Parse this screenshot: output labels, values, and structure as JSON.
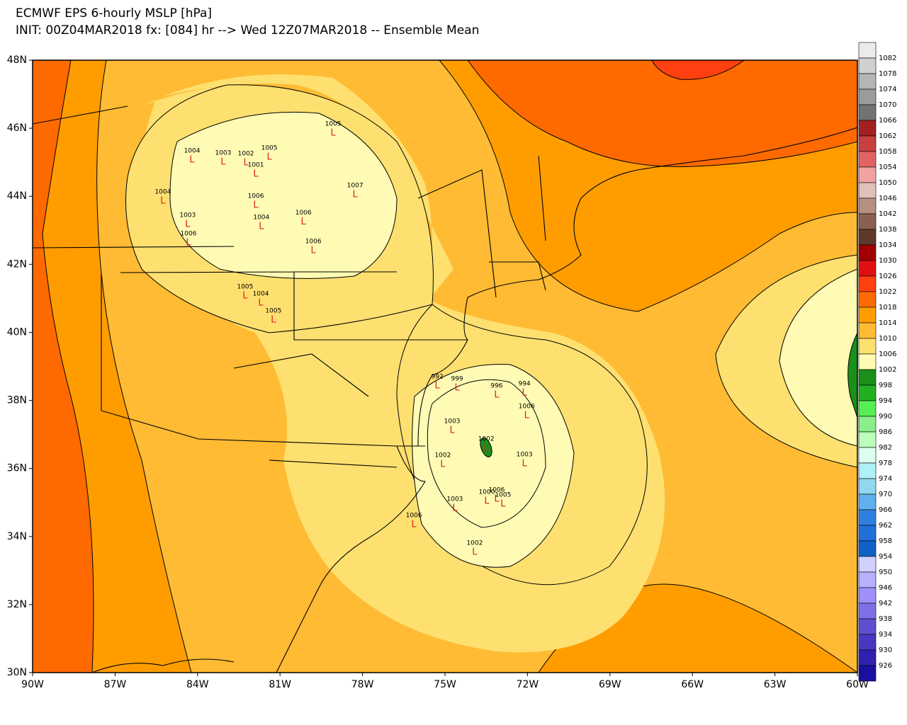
{
  "header": {
    "title": "ECMWF EPS 6-hourly MSLP [hPa]",
    "subtitle": "INIT: 00Z04MAR2018 fx: [084] hr --> Wed 12Z07MAR2018 -- Ensemble Mean"
  },
  "map": {
    "lat_ticks": [
      {
        "value": 48,
        "label": "48N"
      },
      {
        "value": 46,
        "label": "46N"
      },
      {
        "value": 44,
        "label": "44N"
      },
      {
        "value": 42,
        "label": "42N"
      },
      {
        "value": 40,
        "label": "40N"
      },
      {
        "value": 38,
        "label": "38N"
      },
      {
        "value": 36,
        "label": "36N"
      },
      {
        "value": 34,
        "label": "34N"
      },
      {
        "value": 32,
        "label": "32N"
      },
      {
        "value": 30,
        "label": "30N"
      }
    ],
    "lon_ticks": [
      {
        "value": -90,
        "label": "90W"
      },
      {
        "value": -87,
        "label": "87W"
      },
      {
        "value": -84,
        "label": "84W"
      },
      {
        "value": -81,
        "label": "81W"
      },
      {
        "value": -78,
        "label": "78W"
      },
      {
        "value": -75,
        "label": "75W"
      },
      {
        "value": -72,
        "label": "72W"
      },
      {
        "value": -69,
        "label": "69W"
      },
      {
        "value": -66,
        "label": "66W"
      },
      {
        "value": -63,
        "label": "63W"
      },
      {
        "value": -60,
        "label": "60W"
      }
    ],
    "low_symbol": "L",
    "lows": [
      {
        "label": "1005",
        "lat": 45.86,
        "lon": -79.07
      },
      {
        "label": "1004",
        "lat": 45.07,
        "lon": -84.2
      },
      {
        "label": "1003",
        "lat": 45.0,
        "lon": -83.07
      },
      {
        "label": "1002",
        "lat": 44.98,
        "lon": -82.24
      },
      {
        "label": "1005",
        "lat": 45.15,
        "lon": -81.39
      },
      {
        "label": "1001",
        "lat": 44.65,
        "lon": -81.88
      },
      {
        "label": "1004",
        "lat": 43.86,
        "lon": -85.26
      },
      {
        "label": "1007",
        "lat": 44.05,
        "lon": -78.27
      },
      {
        "label": "1003",
        "lat": 43.17,
        "lon": -84.36
      },
      {
        "label": "1006",
        "lat": 43.73,
        "lon": -81.88
      },
      {
        "label": "1006",
        "lat": 43.24,
        "lon": -80.15
      },
      {
        "label": "1004",
        "lat": 43.11,
        "lon": -81.68
      },
      {
        "label": "1006",
        "lat": 42.63,
        "lon": -84.33
      },
      {
        "label": "1006",
        "lat": 42.4,
        "lon": -79.79
      },
      {
        "label": "1005",
        "lat": 41.07,
        "lon": -82.27
      },
      {
        "label": "1004",
        "lat": 40.86,
        "lon": -81.7
      },
      {
        "label": "1005",
        "lat": 40.36,
        "lon": -81.24
      },
      {
        "label": "992",
        "lat": 38.43,
        "lon": -75.28
      },
      {
        "label": "999",
        "lat": 38.37,
        "lon": -74.56
      },
      {
        "label": "996",
        "lat": 38.16,
        "lon": -73.12
      },
      {
        "label": "994",
        "lat": 38.22,
        "lon": -72.11
      },
      {
        "label": "1003",
        "lat": 37.12,
        "lon": -74.74
      },
      {
        "label": "1002",
        "lat": 36.12,
        "lon": -75.08
      },
      {
        "label": "1003",
        "lat": 36.14,
        "lon": -72.11
      },
      {
        "label": "1006",
        "lat": 37.55,
        "lon": -72.03
      },
      {
        "label": "1003",
        "lat": 34.83,
        "lon": -74.64
      },
      {
        "label": "1006",
        "lat": 34.35,
        "lon": -76.13
      },
      {
        "label": "1002",
        "lat": 33.54,
        "lon": -73.92
      },
      {
        "label": "1000",
        "lat": 35.04,
        "lon": -73.48
      },
      {
        "label": "1006",
        "lat": 35.1,
        "lon": -73.12
      },
      {
        "label": "1005",
        "lat": 34.95,
        "lon": -72.89
      },
      {
        "label": "1002",
        "lat": 36.6,
        "lon": -73.5
      }
    ]
  },
  "colorbar": {
    "levels": [
      1082,
      1078,
      1074,
      1070,
      1066,
      1062,
      1058,
      1054,
      1050,
      1046,
      1042,
      1038,
      1034,
      1030,
      1026,
      1022,
      1018,
      1014,
      1010,
      1006,
      1002,
      998,
      994,
      990,
      986,
      982,
      978,
      974,
      970,
      966,
      962,
      958,
      954,
      950,
      946,
      942,
      938,
      934,
      930,
      926
    ],
    "colors": [
      "#ebebeb",
      "#d0d0d0",
      "#b5b5b5",
      "#9b9b9b",
      "#727272",
      "#a32020",
      "#c94040",
      "#e06464",
      "#f2a2a2",
      "#e0c0b8",
      "#b89080",
      "#8a6050",
      "#5e3828",
      "#a00000",
      "#e01010",
      "#ff4010",
      "#ff6a00",
      "#ff9d00",
      "#ffbb33",
      "#fee070",
      "#fffbb4",
      "#1a8f1a",
      "#22b022",
      "#55ee55",
      "#8aee8a",
      "#bbffbb",
      "#ddfff0",
      "#b0f0f8",
      "#90d8f0",
      "#60b0ee",
      "#3080e0",
      "#2070d8",
      "#1060c8",
      "#d0d0ff",
      "#b8b0ff",
      "#9e90f8",
      "#8070e8",
      "#6050d0",
      "#4838c0",
      "#3020b0",
      "#1a10a0"
    ]
  }
}
